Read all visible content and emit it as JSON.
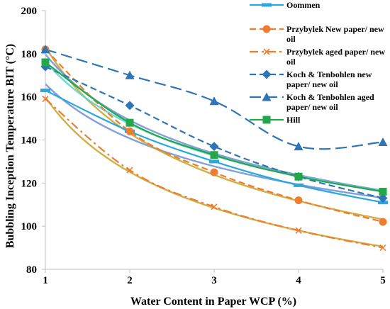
{
  "chart_data": {
    "type": "line",
    "xlabel": "Water Content in Paper WCP (%)",
    "ylabel": "Bubbling Inception Temperature BIT (°C)",
    "x": [
      1,
      2,
      3,
      4,
      5
    ],
    "xlim": [
      1,
      5
    ],
    "ylim": [
      80,
      200
    ],
    "xticks": [
      1,
      2,
      3,
      4,
      5
    ],
    "yticks": [
      80,
      100,
      120,
      140,
      160,
      180,
      200
    ],
    "grid": false,
    "legend_position": "top-right",
    "series": [
      {
        "name": "Oommen",
        "values": [
          163,
          144,
          130,
          119,
          111
        ],
        "color": "#29a8e0",
        "dash": "solid",
        "marker": "dash",
        "trend_color": "#6b8fd4"
      },
      {
        "name": "Przybylek New paper/ new oil",
        "values": [
          182,
          144,
          125,
          112,
          102
        ],
        "color": "#ed7d31",
        "dash": "dash",
        "marker": "circle",
        "trend_color": "#c9a227"
      },
      {
        "name": "Przybylek aged paper/ new oil",
        "values": [
          159,
          126,
          109,
          98,
          90
        ],
        "color": "#ed7d31",
        "dash": "dashdot",
        "marker": "x",
        "trend_color": "#c9a227"
      },
      {
        "name": "Koch & Tenbohlen new paper/ new oil",
        "values": [
          174,
          156,
          137,
          123,
          113
        ],
        "color": "#2e75b6",
        "dash": "dash",
        "marker": "diamond",
        "trend_color": "#6b8fd4"
      },
      {
        "name": "Koch & Tenbohlen aged paper/ new oil",
        "values": [
          182,
          170,
          158,
          137,
          139
        ],
        "color": "#2e75b6",
        "dash": "longdash",
        "marker": "triangle",
        "trend_color": null
      },
      {
        "name": "Hill",
        "values": [
          176,
          148,
          133,
          123,
          116
        ],
        "color": "#22a84a",
        "dash": "solid",
        "marker": "square",
        "trend_color": "#4dd4d4"
      }
    ]
  },
  "legend": [
    {
      "lines": [
        "Oommen"
      ]
    },
    {
      "lines": [
        "Przybylek New paper/ new",
        "oil"
      ]
    },
    {
      "lines": [
        "Przybylek aged paper/ new",
        "oil"
      ]
    },
    {
      "lines": [
        "Koch & Tenbohlen new",
        "paper/ new oil"
      ]
    },
    {
      "lines": [
        "Koch & Tenbohlen aged",
        "paper/ new oil"
      ]
    },
    {
      "lines": [
        "Hill"
      ]
    }
  ]
}
